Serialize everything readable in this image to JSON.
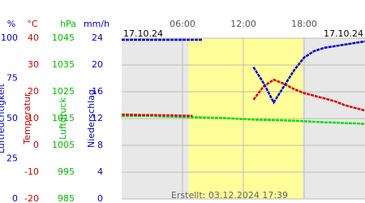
{
  "chart_data": {
    "type": "line",
    "date_left": "17.10.24",
    "date_right": "17.10.24",
    "annotation": "Erstellt: 03.12.2024 17:39",
    "xlim": [
      0,
      24
    ],
    "xticks": [
      {
        "value": 6,
        "label": "06:00"
      },
      {
        "value": 12,
        "label": "12:00"
      },
      {
        "value": 18,
        "label": "18:00"
      }
    ],
    "daylight": [
      6.6,
      17.85
    ],
    "axes": [
      {
        "unit": "%",
        "title": "Luftfeuchtigkeit",
        "color": "#0000cc",
        "ylim": [
          0,
          100
        ],
        "yticks": [
          0,
          25,
          50,
          75,
          100
        ]
      },
      {
        "unit": "°C",
        "title": "Temperatur",
        "color": "#cc0000",
        "ylim": [
          -20,
          40
        ],
        "yticks": [
          -20,
          -10,
          0,
          10,
          20,
          30,
          40
        ]
      },
      {
        "unit": "hPa",
        "title": "Luftdruck",
        "color": "#00bb00",
        "ylim": [
          985,
          1045
        ],
        "yticks": [
          985,
          995,
          1005,
          1015,
          1025,
          1035,
          1045
        ]
      },
      {
        "unit": "mm/h",
        "title": "Niederschlag",
        "color": "#0000cc",
        "ylim": [
          0,
          24
        ],
        "yticks": [
          0,
          4,
          8,
          12,
          16,
          20,
          24
        ]
      }
    ],
    "x": [
      0,
      1,
      2,
      3,
      4,
      5,
      6,
      7,
      8,
      9,
      10,
      11,
      12,
      13,
      14,
      15,
      16,
      17,
      18,
      19,
      20,
      21,
      22,
      23,
      24
    ],
    "series": [
      {
        "name": "Luftdruck",
        "color": "#00dd00",
        "axis": 2,
        "values": [
          1016,
          1016,
          1016,
          1016,
          1015.8,
          1015.7,
          1015.6,
          1015.5,
          1015.4,
          1015.3,
          1015.2,
          1015,
          1014.8,
          1014.6,
          1014.5,
          1014.4,
          1014.3,
          1014.2,
          1014,
          1013.8,
          1013.6,
          1013.5,
          1013.3,
          1013.2,
          1013
        ]
      },
      {
        "name": "Temperatur",
        "color": "#dd0000",
        "axis": 1,
        "values": [
          11.5,
          11.4,
          11.3,
          11.3,
          11.2,
          11.2,
          11.1,
          11.0,
          null,
          null,
          null,
          null,
          null,
          17,
          22,
          24.5,
          23,
          21,
          19.5,
          18.5,
          17.5,
          16.5,
          15,
          14,
          13
        ]
      },
      {
        "name": "Luftfeuchtigkeit",
        "color": "#0000cc",
        "axis": 0,
        "values": [
          99,
          99,
          99,
          99,
          99,
          99,
          99,
          99,
          99,
          null,
          null,
          null,
          null,
          82,
          72,
          60,
          70,
          80,
          88,
          92,
          94,
          95,
          96,
          97,
          98
        ]
      }
    ]
  }
}
